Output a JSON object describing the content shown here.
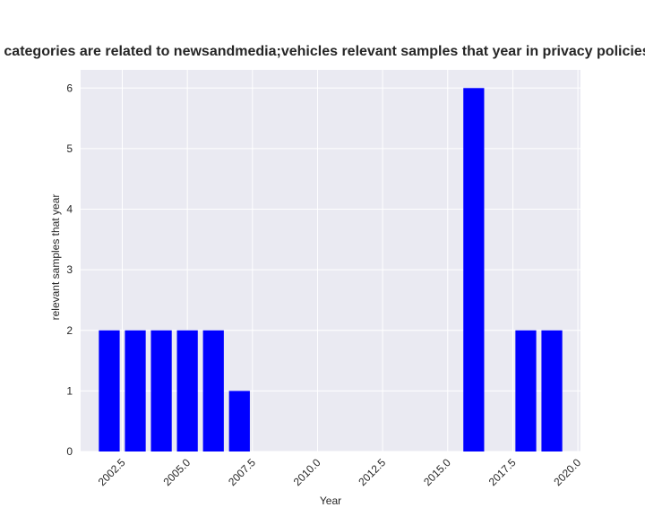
{
  "chart_data": {
    "type": "bar",
    "title": "categories are related to newsandmedia;vehicles relevant samples that year in privacy policies",
    "xlabel": "Year",
    "ylabel": "relevant samples that year",
    "x": [
      2002,
      2003,
      2004,
      2005,
      2006,
      2007,
      2016,
      2018,
      2019
    ],
    "values": [
      2,
      2,
      2,
      2,
      2,
      1,
      6,
      2,
      2
    ],
    "xlim": [
      2000.9,
      2020.1
    ],
    "ylim": [
      0,
      6.3
    ],
    "xticks": [
      "2002.5",
      "2005.0",
      "2007.5",
      "2010.0",
      "2012.5",
      "2015.0",
      "2017.5",
      "2020.0"
    ],
    "yticks": [
      "0",
      "1",
      "2",
      "3",
      "4",
      "5",
      "6"
    ],
    "bar_color": "#0000ff",
    "background": "#eaeaf2",
    "grid": true,
    "legend": "none"
  }
}
